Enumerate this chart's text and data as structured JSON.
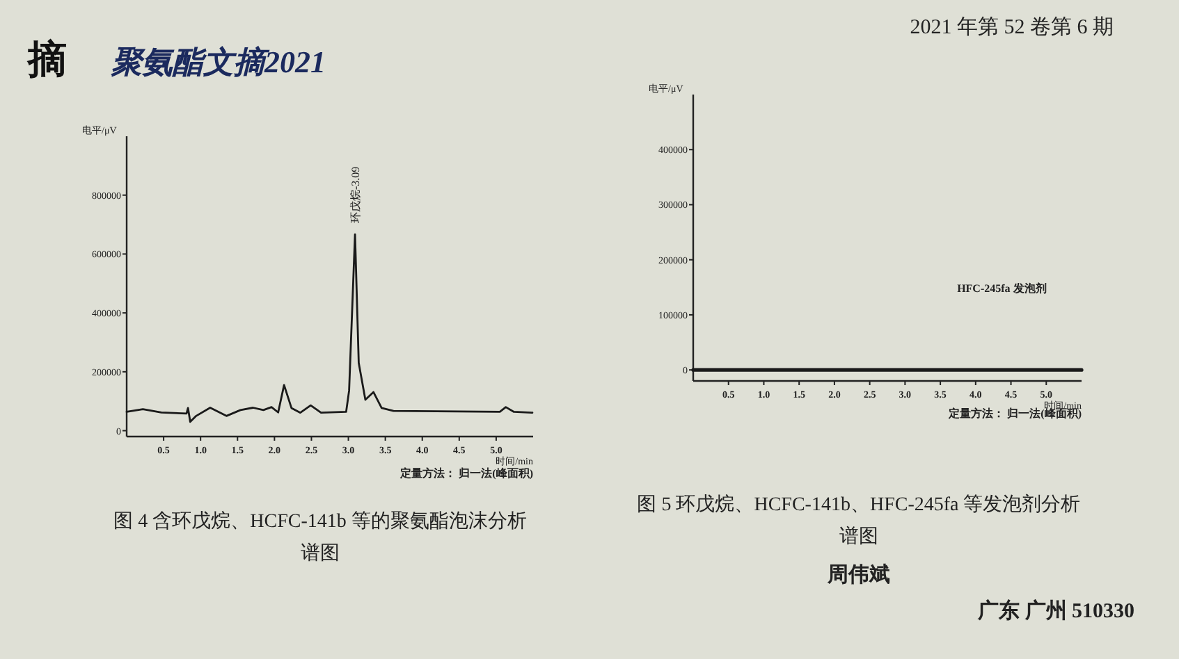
{
  "chart_data": [
    {
      "type": "line",
      "title": "图 4  含环戊烷、HCFC-141b 等的聚氨酯泡沫分析谱图",
      "ylabel": "电平/μV",
      "xlabel": "时间/min",
      "x": [
        0,
        0.22,
        0.47,
        0.81,
        0.83,
        0.86,
        0.94,
        1.13,
        1.35,
        1.54,
        1.71,
        1.85,
        1.96,
        2.05,
        2.13,
        2.23,
        2.35,
        2.49,
        2.63,
        2.97,
        3.01,
        3.09,
        3.14,
        3.23,
        3.34,
        3.45,
        3.61,
        5.05,
        5.13,
        5.24,
        5.49
      ],
      "series": [
        {
          "color": "#1a1a1a",
          "values": [
            64000,
            73000,
            62000,
            58000,
            77000,
            30000,
            50000,
            78000,
            50000,
            70000,
            78000,
            70000,
            80000,
            62000,
            155000,
            77000,
            61000,
            86000,
            61000,
            64000,
            136000,
            667000,
            230000,
            105000,
            131000,
            77000,
            67000,
            64000,
            80000,
            64000,
            61000
          ]
        }
      ],
      "xlim": [
        0,
        5.5
      ],
      "ylim": [
        -20000,
        1000000
      ],
      "xticks": [
        0.5,
        {
          "value": 1,
          "label": "1.0"
        },
        1.5,
        {
          "value": 2,
          "label": "2.0"
        },
        2.5,
        {
          "value": 3,
          "label": "3.0"
        },
        3.5,
        {
          "value": 4,
          "label": "4.0"
        },
        4.5,
        {
          "value": 5,
          "label": "5.0"
        }
      ],
      "yticks": [
        0,
        200000,
        400000,
        600000,
        800000
      ],
      "annotations": [
        {
          "text": "环戊烷-3.09",
          "x": 3.09,
          "y": 667000
        },
        "定量方法：  归一法(峰面积)",
        "摘",
        "聚氨酯文摘2021"
      ]
    },
    {
      "type": "line",
      "title": "图 5  环戊烷、HCFC-141b、HFC-245fa 等发泡剂分析谱图",
      "ylabel": "电平/μV",
      "xlabel": "时间/min",
      "x": [
        0,
        5.5
      ],
      "series": [
        {
          "color": "#1a1a1a",
          "values": [
            0,
            0
          ]
        }
      ],
      "xlim": [
        0,
        5.5
      ],
      "ylim": [
        -20000,
        500000
      ],
      "xticks": [
        0.5,
        {
          "value": 1,
          "label": "1.0"
        },
        1.5,
        {
          "value": 2,
          "label": "2.0"
        },
        2.5,
        {
          "value": 3,
          "label": "3.0"
        },
        3.5,
        {
          "value": 4,
          "label": "4.0"
        },
        4.5,
        {
          "value": 5,
          "label": "5.0"
        }
      ],
      "yticks": [
        0,
        100000,
        200000,
        300000,
        400000
      ],
      "annotations": [
        "HFC-245fa 发泡剂",
        "定量方法：  归一法(峰面积)",
        "2021 年第 52 卷第 6 期",
        "周伟斌",
        "广东   广州   510330"
      ]
    }
  ]
}
